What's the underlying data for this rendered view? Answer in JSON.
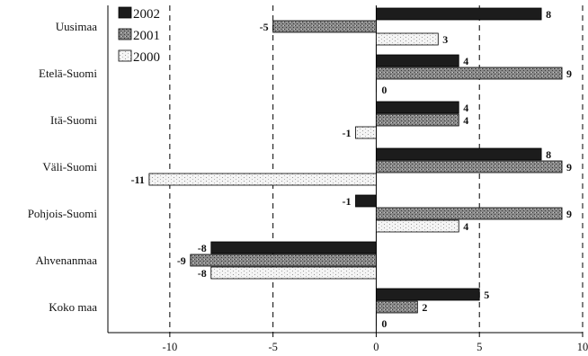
{
  "chart_data": {
    "type": "bar",
    "orientation": "horizontal",
    "categories": [
      "Uusimaa",
      "Etelä-Suomi",
      "Itä-Suomi",
      "Väli-Suomi",
      "Pohjois-Suomi",
      "Ahvenanmaa",
      "Koko maa"
    ],
    "series": [
      {
        "name": "2002",
        "values": [
          8,
          4,
          4,
          8,
          -1,
          -8,
          5
        ],
        "color": "#1a1a1a"
      },
      {
        "name": "2001",
        "values": [
          -5,
          9,
          4,
          9,
          9,
          -9,
          2
        ],
        "color": "#7d7d7d"
      },
      {
        "name": "2000",
        "values": [
          3,
          0,
          -1,
          -11,
          4,
          -8,
          0
        ],
        "color": "#ececec"
      }
    ],
    "xlim": [
      -13,
      10
    ],
    "xticks": [
      -10,
      -5,
      0,
      5,
      10
    ],
    "grid": "vertical dashed",
    "legend_placement": "top-left"
  }
}
